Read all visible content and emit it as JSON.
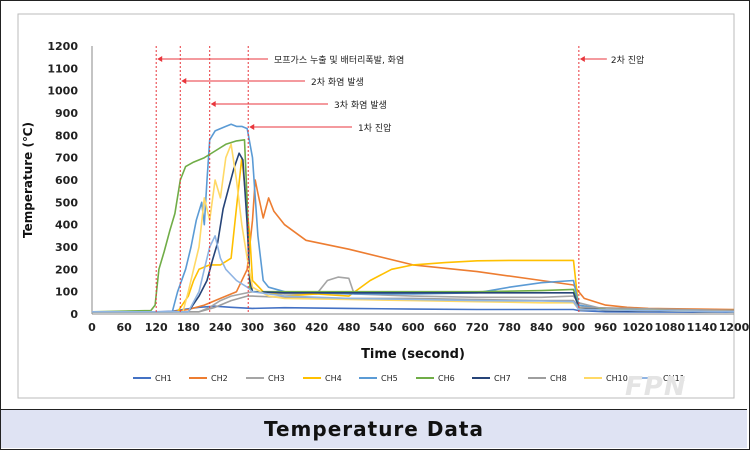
{
  "caption": "Temperature Data",
  "watermark": "FPN",
  "chart_data": {
    "type": "line",
    "xlabel": "Time (second)",
    "ylabel": "Temperature (℃)",
    "xlim": [
      0,
      1200
    ],
    "ylim": [
      0,
      1200
    ],
    "xticks": [
      0,
      60,
      120,
      180,
      240,
      300,
      360,
      420,
      480,
      540,
      600,
      660,
      720,
      780,
      840,
      900,
      960,
      1020,
      1080,
      1140,
      1200
    ],
    "yticks": [
      0,
      100,
      200,
      300,
      400,
      500,
      600,
      700,
      800,
      900,
      1000,
      1100,
      1200
    ],
    "grid": false,
    "legend_position": "bottom",
    "events": [
      {
        "time": 120,
        "label": "모프가스 누출 및 배터리폭발, 화염"
      },
      {
        "time": 165,
        "label": "2차 화염 발생"
      },
      {
        "time": 220,
        "label": "3차 화염 발생"
      },
      {
        "time": 292,
        "label": "1차 진압"
      },
      {
        "time": 910,
        "label": "2차 진압"
      }
    ],
    "series": [
      {
        "name": "CH1",
        "color": "#4472c4",
        "points": [
          [
            0,
            10
          ],
          [
            120,
            10
          ],
          [
            150,
            12
          ],
          [
            170,
            20
          ],
          [
            200,
            30
          ],
          [
            230,
            35
          ],
          [
            260,
            30
          ],
          [
            300,
            25
          ],
          [
            360,
            28
          ],
          [
            480,
            25
          ],
          [
            600,
            22
          ],
          [
            720,
            20
          ],
          [
            840,
            20
          ],
          [
            900,
            20
          ],
          [
            910,
            15
          ],
          [
            960,
            10
          ],
          [
            1200,
            8
          ]
        ]
      },
      {
        "name": "CH2",
        "color": "#ed7d31",
        "points": [
          [
            0,
            10
          ],
          [
            150,
            10
          ],
          [
            180,
            20
          ],
          [
            210,
            40
          ],
          [
            240,
            70
          ],
          [
            270,
            100
          ],
          [
            290,
            200
          ],
          [
            300,
            420
          ],
          [
            305,
            600
          ],
          [
            310,
            540
          ],
          [
            320,
            430
          ],
          [
            330,
            520
          ],
          [
            340,
            460
          ],
          [
            360,
            400
          ],
          [
            400,
            330
          ],
          [
            480,
            290
          ],
          [
            600,
            220
          ],
          [
            720,
            190
          ],
          [
            840,
            150
          ],
          [
            900,
            130
          ],
          [
            910,
            100
          ],
          [
            920,
            70
          ],
          [
            960,
            40
          ],
          [
            1000,
            30
          ],
          [
            1040,
            25
          ],
          [
            1200,
            20
          ]
        ]
      },
      {
        "name": "CH3",
        "color": "#a5a5a5",
        "points": [
          [
            0,
            10
          ],
          [
            200,
            10
          ],
          [
            220,
            30
          ],
          [
            240,
            60
          ],
          [
            260,
            80
          ],
          [
            280,
            90
          ],
          [
            300,
            100
          ],
          [
            360,
            90
          ],
          [
            420,
            90
          ],
          [
            440,
            150
          ],
          [
            460,
            165
          ],
          [
            480,
            160
          ],
          [
            490,
            90
          ],
          [
            600,
            80
          ],
          [
            720,
            75
          ],
          [
            840,
            75
          ],
          [
            900,
            80
          ],
          [
            910,
            50
          ],
          [
            960,
            20
          ],
          [
            1200,
            15
          ]
        ]
      },
      {
        "name": "CH4",
        "color": "#ffc000",
        "points": [
          [
            0,
            10
          ],
          [
            160,
            10
          ],
          [
            180,
            80
          ],
          [
            190,
            150
          ],
          [
            200,
            200
          ],
          [
            220,
            220
          ],
          [
            240,
            220
          ],
          [
            260,
            250
          ],
          [
            280,
            700
          ],
          [
            295,
            350
          ],
          [
            300,
            150
          ],
          [
            320,
            100
          ],
          [
            360,
            80
          ],
          [
            420,
            90
          ],
          [
            480,
            80
          ],
          [
            520,
            150
          ],
          [
            560,
            200
          ],
          [
            600,
            220
          ],
          [
            660,
            230
          ],
          [
            720,
            238
          ],
          [
            780,
            240
          ],
          [
            840,
            240
          ],
          [
            900,
            240
          ],
          [
            910,
            20
          ],
          [
            1200,
            10
          ]
        ]
      },
      {
        "name": "CH5",
        "color": "#5b9bd5",
        "points": [
          [
            0,
            10
          ],
          [
            150,
            10
          ],
          [
            160,
            100
          ],
          [
            175,
            200
          ],
          [
            185,
            300
          ],
          [
            195,
            420
          ],
          [
            205,
            500
          ],
          [
            210,
            400
          ],
          [
            215,
            600
          ],
          [
            220,
            780
          ],
          [
            230,
            820
          ],
          [
            240,
            830
          ],
          [
            250,
            840
          ],
          [
            260,
            850
          ],
          [
            270,
            840
          ],
          [
            280,
            840
          ],
          [
            290,
            830
          ],
          [
            300,
            700
          ],
          [
            310,
            350
          ],
          [
            320,
            150
          ],
          [
            330,
            120
          ],
          [
            360,
            100
          ],
          [
            480,
            90
          ],
          [
            600,
            90
          ],
          [
            720,
            95
          ],
          [
            780,
            120
          ],
          [
            840,
            140
          ],
          [
            900,
            150
          ],
          [
            910,
            40
          ],
          [
            960,
            20
          ],
          [
            1200,
            15
          ]
        ]
      },
      {
        "name": "CH6",
        "color": "#70ad47",
        "points": [
          [
            0,
            10
          ],
          [
            110,
            15
          ],
          [
            118,
            40
          ],
          [
            125,
            200
          ],
          [
            135,
            280
          ],
          [
            145,
            370
          ],
          [
            155,
            450
          ],
          [
            165,
            600
          ],
          [
            175,
            660
          ],
          [
            190,
            680
          ],
          [
            210,
            700
          ],
          [
            230,
            730
          ],
          [
            250,
            760
          ],
          [
            270,
            775
          ],
          [
            285,
            780
          ],
          [
            290,
            500
          ],
          [
            295,
            120
          ],
          [
            300,
            100
          ],
          [
            360,
            100
          ],
          [
            480,
            100
          ],
          [
            600,
            100
          ],
          [
            720,
            100
          ],
          [
            840,
            105
          ],
          [
            900,
            110
          ],
          [
            910,
            30
          ],
          [
            960,
            20
          ],
          [
            1200,
            15
          ]
        ]
      },
      {
        "name": "CH7",
        "color": "#264478",
        "points": [
          [
            0,
            10
          ],
          [
            180,
            10
          ],
          [
            200,
            80
          ],
          [
            215,
            150
          ],
          [
            225,
            240
          ],
          [
            235,
            320
          ],
          [
            245,
            470
          ],
          [
            255,
            560
          ],
          [
            265,
            650
          ],
          [
            275,
            720
          ],
          [
            282,
            690
          ],
          [
            290,
            400
          ],
          [
            295,
            150
          ],
          [
            300,
            100
          ],
          [
            360,
            95
          ],
          [
            480,
            95
          ],
          [
            600,
            95
          ],
          [
            720,
            95
          ],
          [
            840,
            95
          ],
          [
            900,
            95
          ],
          [
            910,
            30
          ],
          [
            960,
            15
          ],
          [
            1200,
            10
          ]
        ]
      },
      {
        "name": "CH8",
        "color": "#9e9e9e",
        "points": [
          [
            0,
            10
          ],
          [
            200,
            10
          ],
          [
            230,
            30
          ],
          [
            260,
            60
          ],
          [
            290,
            80
          ],
          [
            300,
            80
          ],
          [
            360,
            75
          ],
          [
            480,
            70
          ],
          [
            600,
            70
          ],
          [
            720,
            65
          ],
          [
            840,
            60
          ],
          [
            900,
            60
          ],
          [
            910,
            30
          ],
          [
            1200,
            15
          ]
        ]
      },
      {
        "name": "CH10",
        "color": "#ffd966",
        "points": [
          [
            0,
            10
          ],
          [
            170,
            10
          ],
          [
            180,
            100
          ],
          [
            190,
            200
          ],
          [
            200,
            300
          ],
          [
            210,
            520
          ],
          [
            220,
            420
          ],
          [
            230,
            600
          ],
          [
            240,
            520
          ],
          [
            250,
            700
          ],
          [
            260,
            760
          ],
          [
            270,
            600
          ],
          [
            280,
            400
          ],
          [
            290,
            250
          ],
          [
            300,
            120
          ],
          [
            330,
            80
          ],
          [
            360,
            70
          ],
          [
            480,
            65
          ],
          [
            600,
            60
          ],
          [
            720,
            55
          ],
          [
            840,
            50
          ],
          [
            900,
            50
          ],
          [
            910,
            20
          ],
          [
            1200,
            10
          ]
        ]
      },
      {
        "name": "CH11",
        "color": "#8fb4e3",
        "points": [
          [
            0,
            10
          ],
          [
            180,
            10
          ],
          [
            200,
            100
          ],
          [
            210,
            200
          ],
          [
            220,
            300
          ],
          [
            230,
            350
          ],
          [
            240,
            250
          ],
          [
            250,
            200
          ],
          [
            270,
            150
          ],
          [
            290,
            120
          ],
          [
            300,
            100
          ],
          [
            360,
            80
          ],
          [
            480,
            70
          ],
          [
            600,
            65
          ],
          [
            720,
            60
          ],
          [
            840,
            58
          ],
          [
            900,
            55
          ],
          [
            910,
            20
          ],
          [
            1200,
            10
          ]
        ]
      }
    ]
  }
}
